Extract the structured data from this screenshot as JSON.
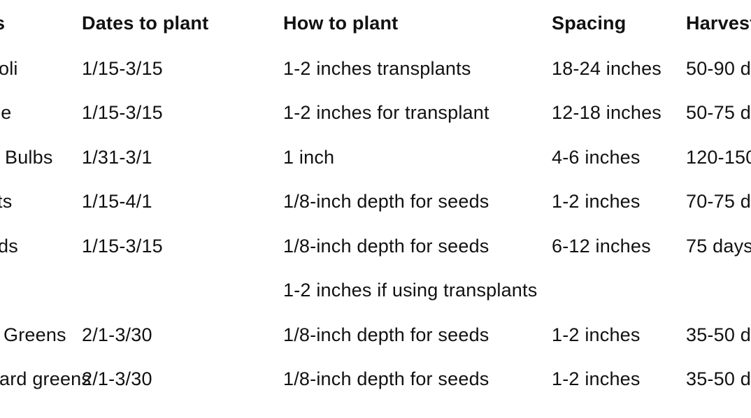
{
  "table": {
    "headers": [
      "s",
      "Dates to plant",
      "How to plant",
      "Spacing",
      "Harvest"
    ],
    "rows": [
      [
        "oli",
        "1/15-3/15",
        "1-2 inches transplants",
        "18-24 inches",
        "50-90 d"
      ],
      [
        "ge",
        "1/15-3/15",
        "1-2 inches for transplant",
        "12-18 inches",
        "50-75 d"
      ],
      [
        "Bulbs",
        "1/31-3/1",
        "1 inch",
        "4-6 inches",
        "120-150"
      ],
      [
        "ts",
        "1/15-4/1",
        "1/8-inch depth for seeds",
        "1-2 inches",
        "70-75 d"
      ],
      [
        "ds",
        "1/15-3/15",
        "1/8-inch depth for seeds",
        "6-12 inches",
        "75 days"
      ],
      [
        "",
        "",
        "1-2 inches if using transplants",
        "",
        ""
      ],
      [
        "Greens",
        "2/1-3/30",
        "1/8-inch depth for seeds",
        "1-2 inches",
        "35-50 d"
      ],
      [
        "ard greens",
        "2/1-3/30",
        "1/8-inch depth for seeds",
        "1-2 inches",
        "35-50 d"
      ]
    ]
  }
}
